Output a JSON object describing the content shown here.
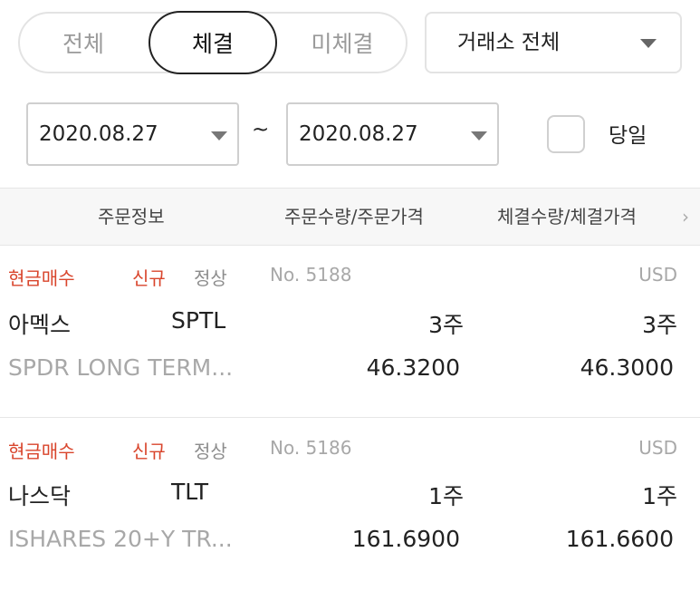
{
  "tabs": {
    "all": "전체",
    "filled": "체결",
    "unfilled": "미체결"
  },
  "exchange": {
    "selected": "거래소 전체"
  },
  "date_range": {
    "from": "2020.08.27",
    "separator": "~",
    "to": "2020.08.27"
  },
  "today_checkbox": {
    "label": "당일",
    "checked": false
  },
  "table": {
    "headers": [
      "주문정보",
      "주문수량/주문가격",
      "체결수량/체결가격"
    ],
    "orders": [
      {
        "order_type": "현금매수",
        "category": "신규",
        "status": "정상",
        "order_no": "No. 5188",
        "currency": "USD",
        "exchange": "아멕스",
        "ticker": "SPTL",
        "order_qty": "3주",
        "filled_qty": "3주",
        "name": "SPDR LONG TERM...",
        "order_price": "46.3200",
        "filled_price": "46.3000"
      },
      {
        "order_type": "현금매수",
        "category": "신규",
        "status": "정상",
        "order_no": "No. 5186",
        "currency": "USD",
        "exchange": "나스닥",
        "ticker": "TLT",
        "order_qty": "1주",
        "filled_qty": "1주",
        "name": "ISHARES 20+Y TR...",
        "order_price": "161.6900",
        "filled_price": "161.6600"
      }
    ]
  },
  "colors": {
    "accent_red": "#d9452c",
    "border": "#e3e3e3",
    "header_bg": "#f7f7f7"
  }
}
